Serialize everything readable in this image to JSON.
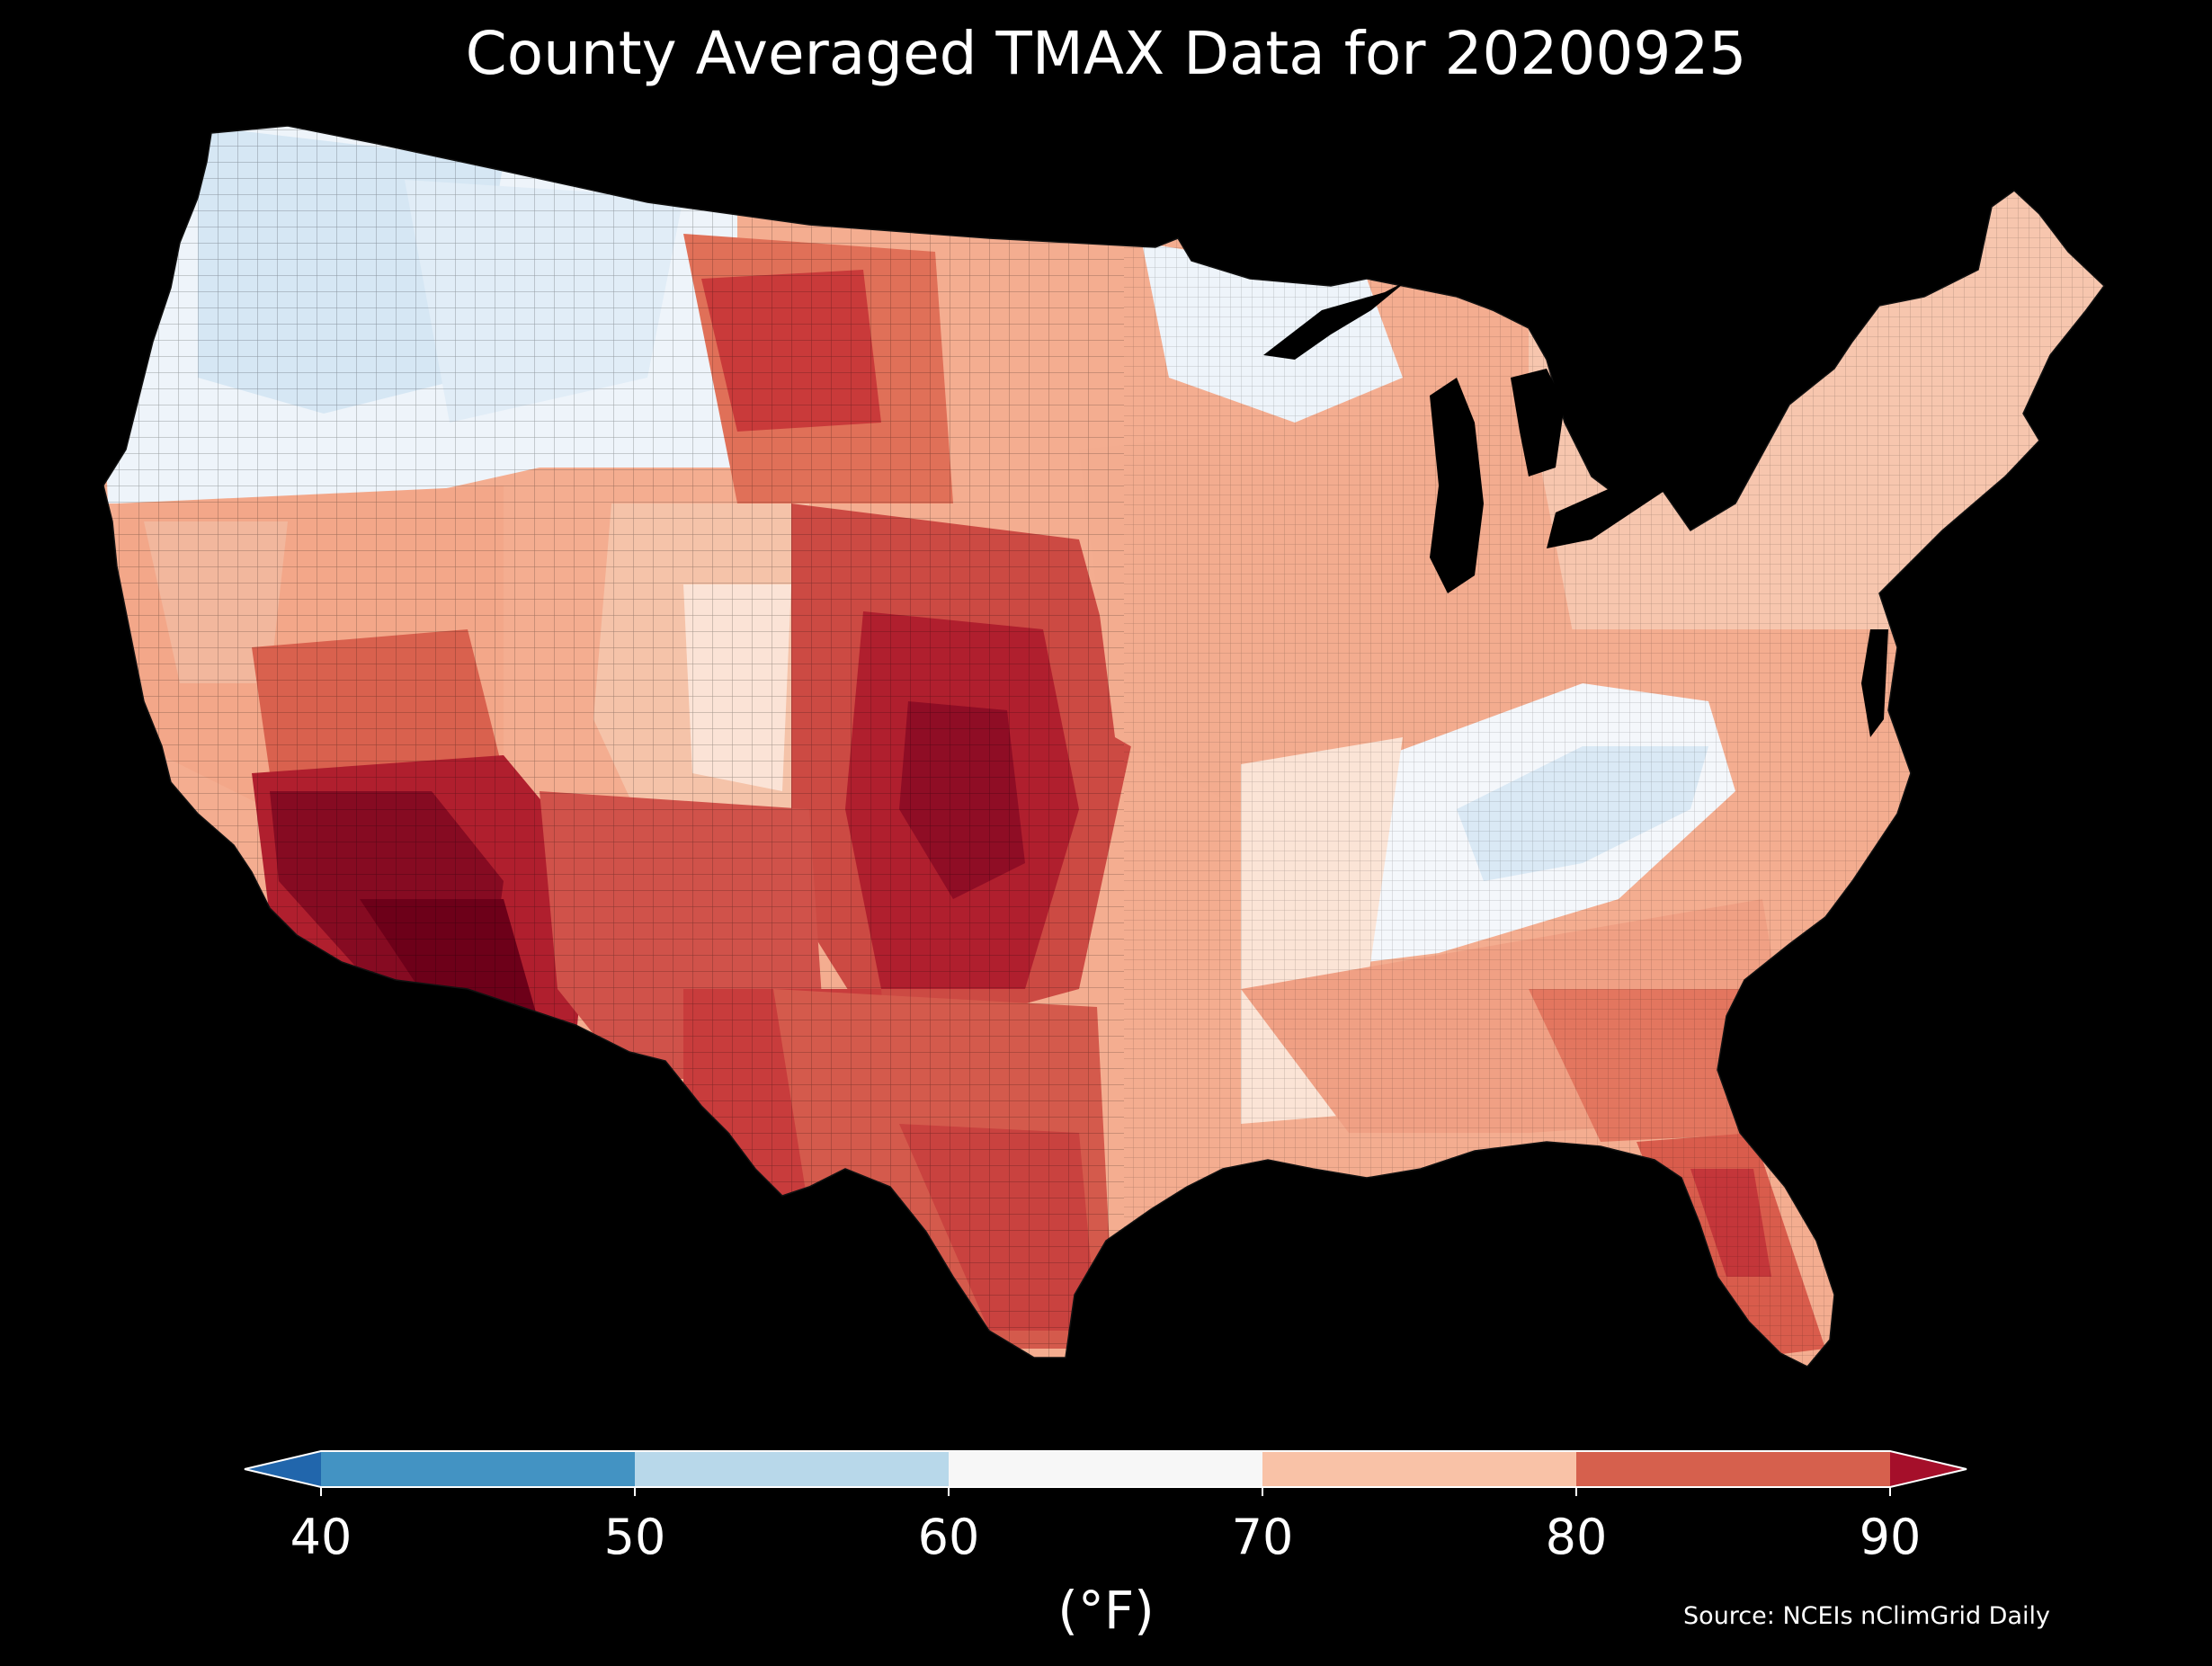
{
  "title": "County Averaged TMAX Data for 20200925",
  "colorbar": {
    "label": "(°F)",
    "ticks": [
      "40",
      "50",
      "60",
      "70",
      "80",
      "90"
    ],
    "bins": [
      {
        "range": "<40",
        "color": "#2166ac"
      },
      {
        "range": "40-50",
        "color": "#4393c3"
      },
      {
        "range": "50-60",
        "color": "#b8d8ea"
      },
      {
        "range": "60-70",
        "color": "#f7f7f7"
      },
      {
        "range": "70-80",
        "color": "#f9c2a7"
      },
      {
        "range": "80-90",
        "color": "#d6604d"
      },
      {
        "range": ">90",
        "color": "#a50f2a"
      }
    ]
  },
  "source": "Source: NCEIs nClimGrid Daily",
  "map": {
    "type": "choropleth",
    "region": "Contiguous United States counties",
    "variable": "TMAX",
    "units": "°F",
    "date": "20200925",
    "background": "#000000",
    "regional_pattern": [
      {
        "area": "Pacific Northwest",
        "color": "#deebf7"
      },
      {
        "area": "Northern Rockies",
        "color": "#e3eef8"
      },
      {
        "area": "Northern Minnesota",
        "color": "#eef4fa"
      },
      {
        "area": "Appalachians",
        "color": "#e4eef8"
      },
      {
        "area": "California coast",
        "color": "#f4b093"
      },
      {
        "area": "Great Basin",
        "color": "#f0a68a"
      },
      {
        "area": "Desert Southwest",
        "color": "#7a0820"
      },
      {
        "area": "High Plains",
        "color": "#b8202e"
      },
      {
        "area": "Northern Plains",
        "color": "#d6604d"
      },
      {
        "area": "Texas",
        "color": "#d0544a"
      },
      {
        "area": "Midwest",
        "color": "#f2a688"
      },
      {
        "area": "Florida",
        "color": "#d8594b"
      },
      {
        "area": "Northeast",
        "color": "#f6c0a6"
      }
    ]
  }
}
